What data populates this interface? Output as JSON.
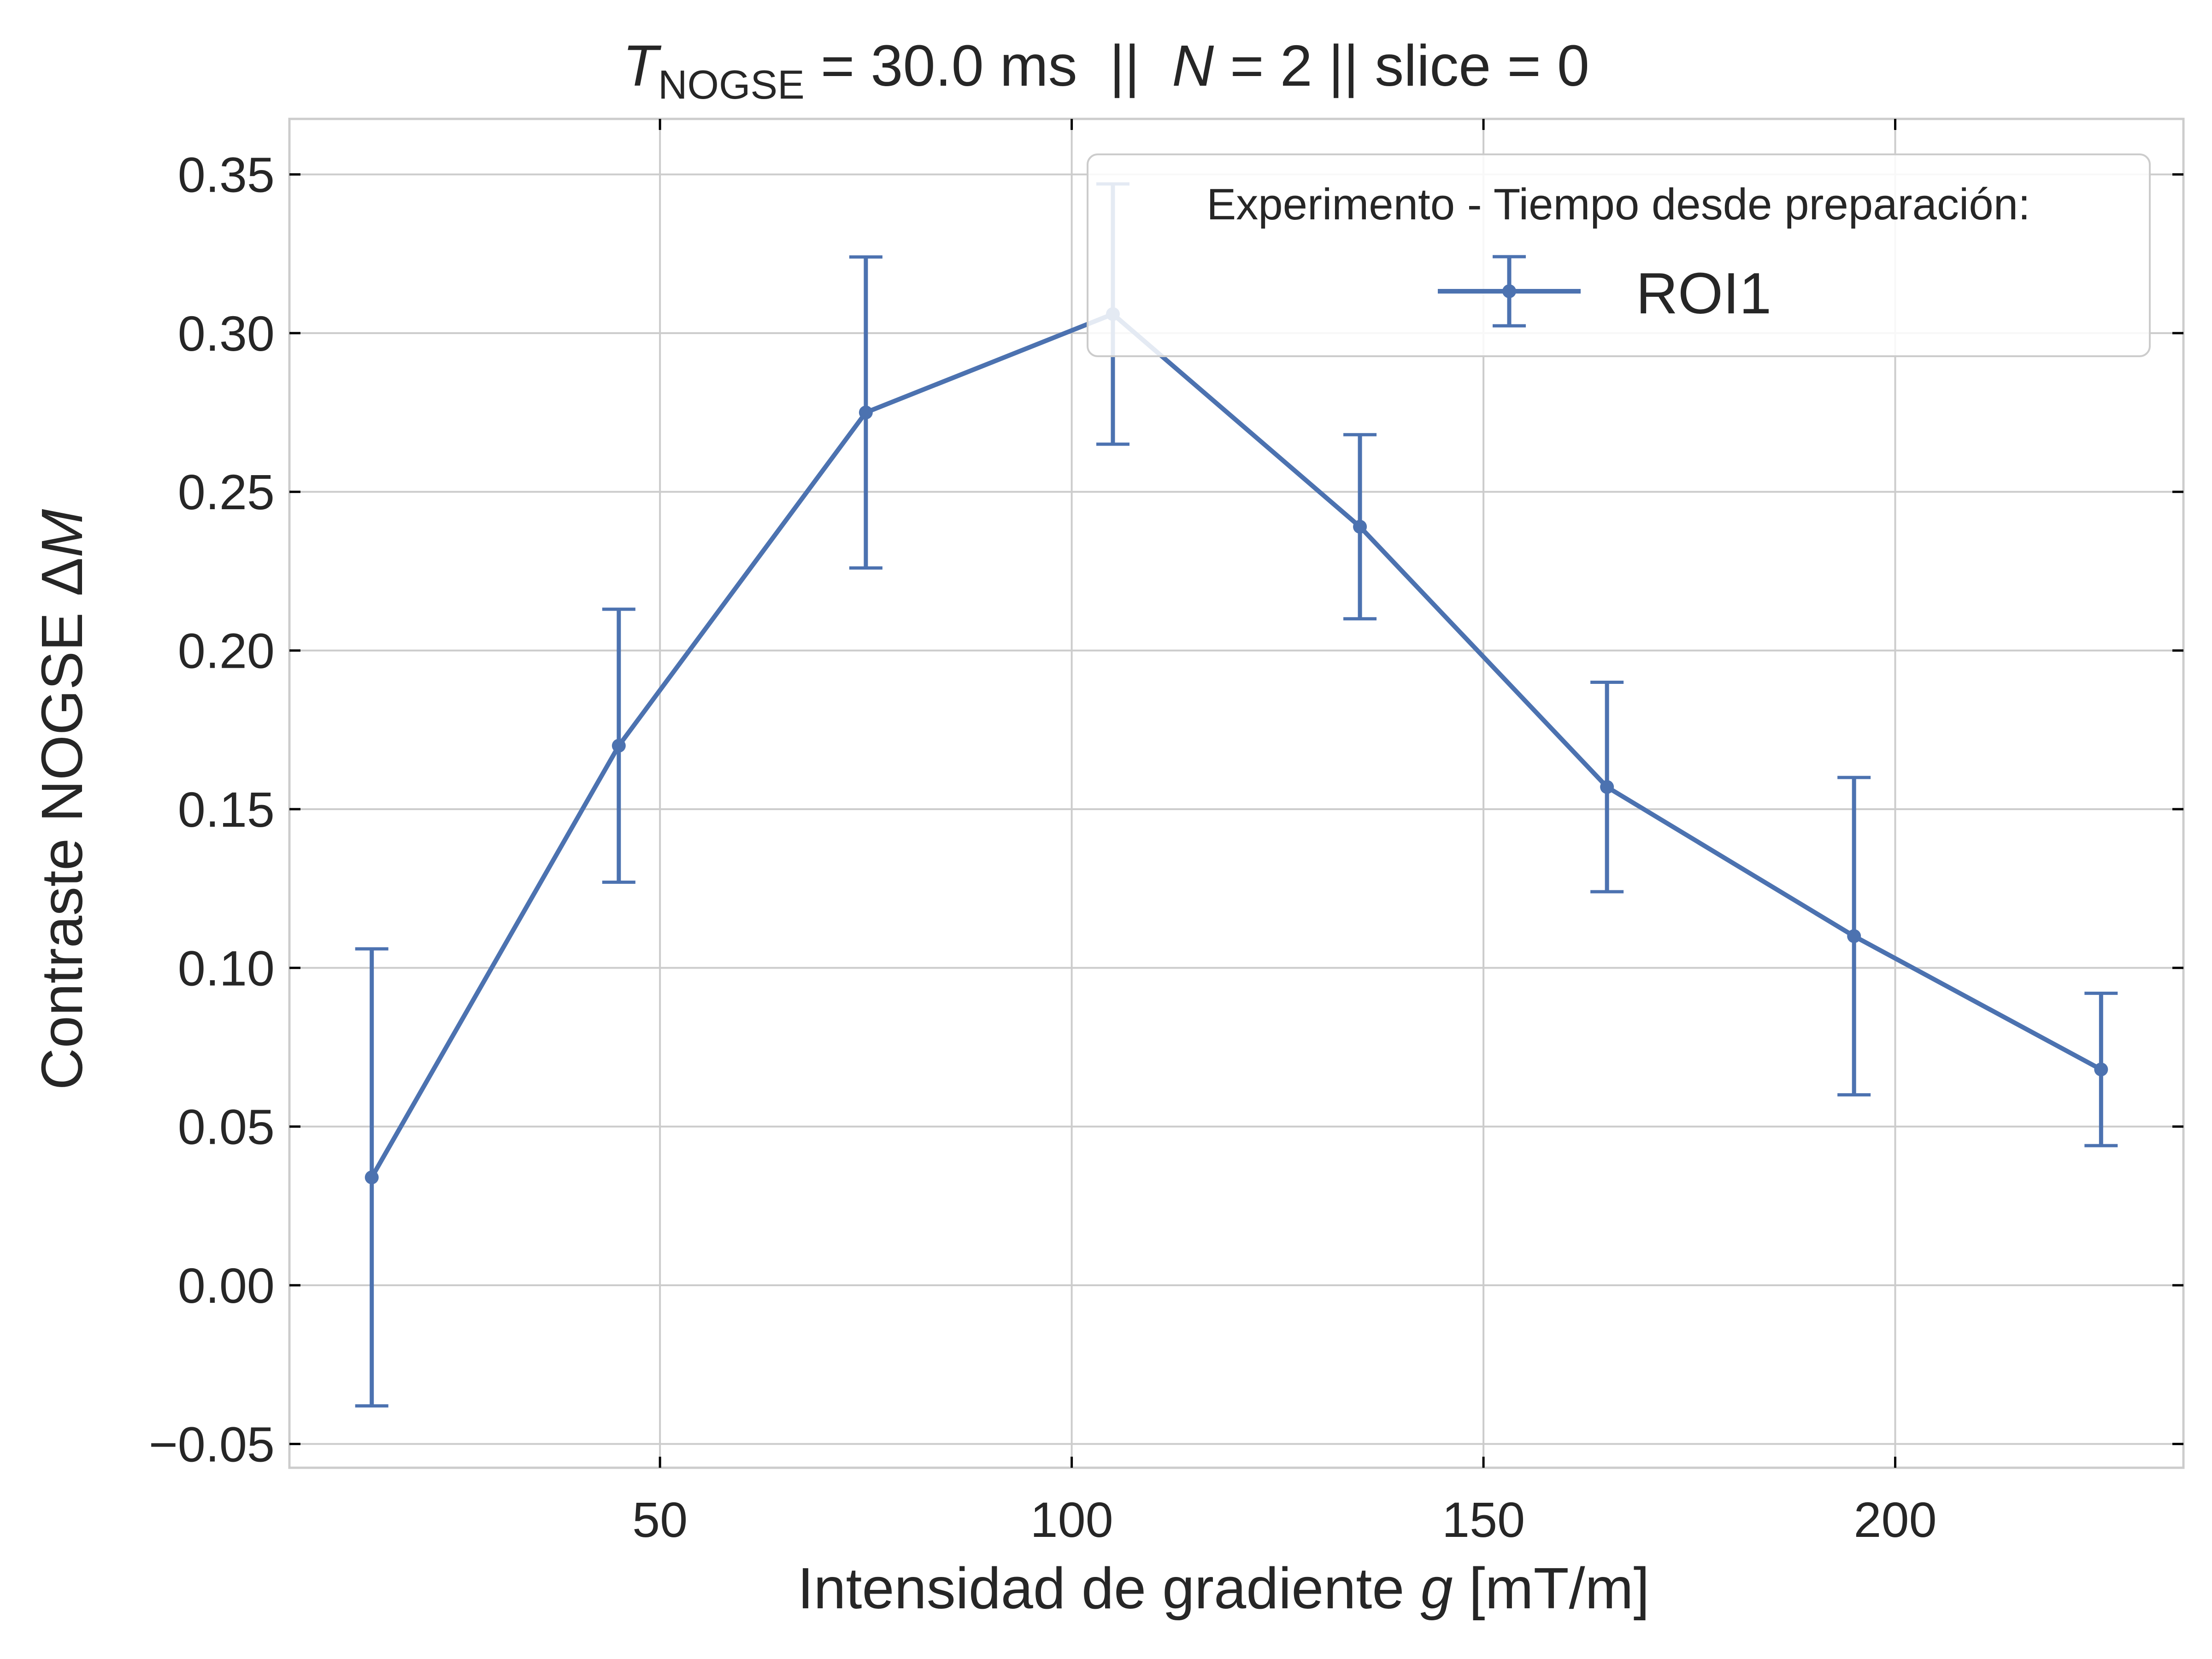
{
  "chart_data": {
    "type": "line",
    "title": {
      "symbol": "T",
      "subscript": "NOGSE",
      "rest_1": " = 30.0 ms  ||  ",
      "italic_N": "N",
      "rest_2": " = 2 || slice = 0"
    },
    "xlabel": {
      "text": "Intensidad de gradiente ",
      "italic": "g",
      "suffix": " [mT/m]"
    },
    "ylabel": {
      "text": "Contraste NOGSE Δ",
      "italic": "M"
    },
    "xlim": [
      5,
      235
    ],
    "ylim": [
      -0.0575,
      0.3675
    ],
    "xticks": [
      50,
      100,
      150,
      200
    ],
    "xtick_labels": [
      "50",
      "100",
      "150",
      "200"
    ],
    "yticks": [
      -0.05,
      0.0,
      0.05,
      0.1,
      0.15,
      0.2,
      0.25,
      0.3,
      0.35
    ],
    "ytick_labels": [
      "−0.05",
      "0.00",
      "0.05",
      "0.10",
      "0.15",
      "0.20",
      "0.25",
      "0.30",
      "0.35"
    ],
    "grid": true,
    "legend": {
      "title": "Experimento - Tiempo desde preparación:",
      "placement": "upper-right"
    },
    "series": [
      {
        "name": "ROI1",
        "color": "#4c72b0",
        "x": [
          15,
          45,
          75,
          105,
          135,
          165,
          195,
          225
        ],
        "y": [
          0.034,
          0.17,
          0.275,
          0.306,
          0.239,
          0.157,
          0.11,
          0.068
        ],
        "yerr": [
          0.072,
          0.043,
          0.049,
          0.041,
          0.029,
          0.033,
          0.05,
          0.024
        ]
      }
    ]
  }
}
